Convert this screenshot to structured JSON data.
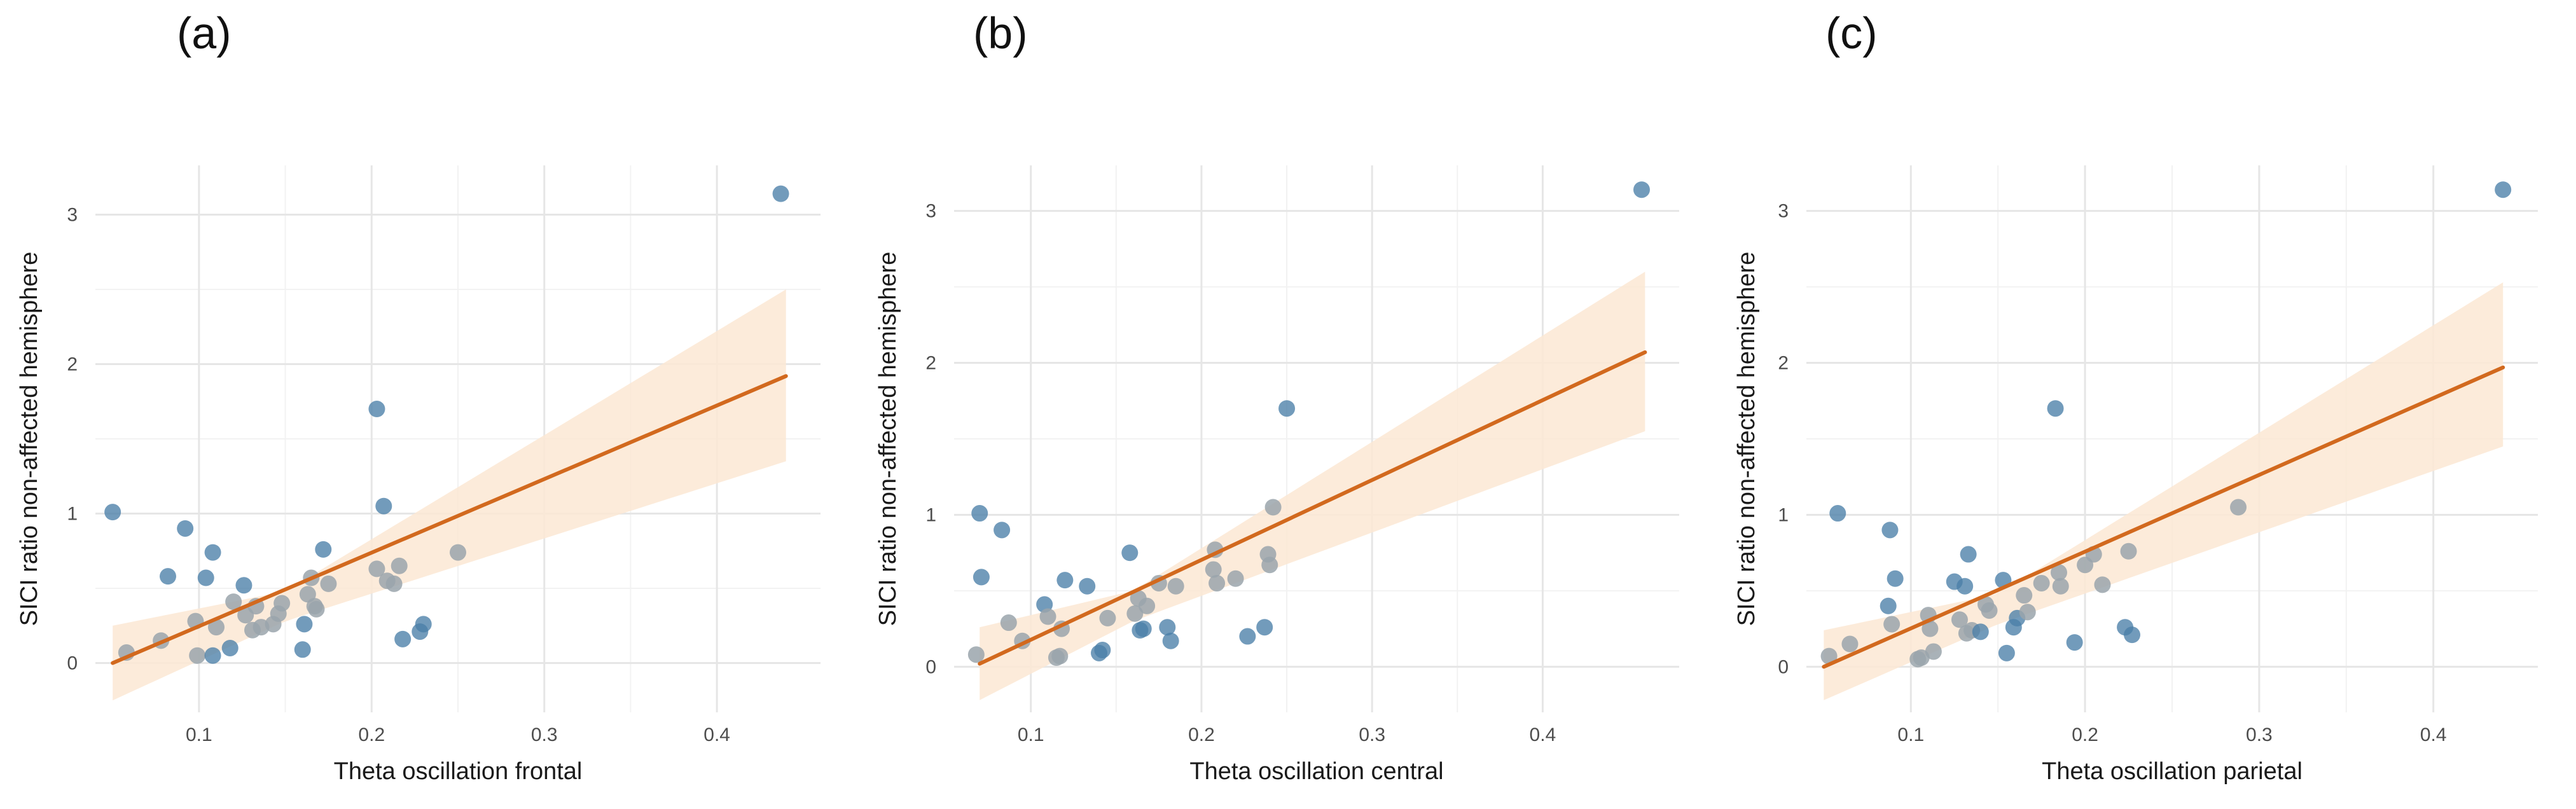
{
  "colors": {
    "point": "#4a7fa8",
    "point_gray": "#9aa4ab",
    "line": "#d2691e",
    "band": "#fbe7d3",
    "grid": "#e6e6e6"
  },
  "chart_data": [
    {
      "type": "scatter",
      "panel_label": "(a)",
      "xlabel": "Theta oscillation frontal",
      "ylabel": "SICI ratio non-affected hemisphere",
      "xlim": [
        0.04,
        0.46
      ],
      "ylim": [
        -0.33,
        3.33
      ],
      "xticks": [
        0.1,
        0.2,
        0.3,
        0.4
      ],
      "xtick_labels": [
        "0.1",
        "0.2",
        "0.3",
        "0.4"
      ],
      "yticks": [
        0,
        1,
        2,
        3
      ],
      "ytick_labels": [
        "0",
        "1",
        "2",
        "3"
      ],
      "fit": {
        "x": [
          0.05,
          0.44
        ],
        "y": [
          0.0,
          1.92
        ]
      },
      "ci_band": {
        "x": [
          0.05,
          0.15,
          0.44
        ],
        "lower": [
          -0.25,
          0.28,
          1.35
        ],
        "upper": [
          0.25,
          0.48,
          2.5
        ]
      },
      "points": [
        {
          "x": 0.05,
          "y": 1.01
        },
        {
          "x": 0.058,
          "y": 0.07
        },
        {
          "x": 0.078,
          "y": 0.15
        },
        {
          "x": 0.082,
          "y": 0.58
        },
        {
          "x": 0.092,
          "y": 0.9
        },
        {
          "x": 0.098,
          "y": 0.28
        },
        {
          "x": 0.099,
          "y": 0.05
        },
        {
          "x": 0.104,
          "y": 0.57
        },
        {
          "x": 0.108,
          "y": 0.74
        },
        {
          "x": 0.108,
          "y": 0.05
        },
        {
          "x": 0.11,
          "y": 0.24
        },
        {
          "x": 0.118,
          "y": 0.1
        },
        {
          "x": 0.12,
          "y": 0.41
        },
        {
          "x": 0.126,
          "y": 0.52
        },
        {
          "x": 0.127,
          "y": 0.32
        },
        {
          "x": 0.131,
          "y": 0.22
        },
        {
          "x": 0.133,
          "y": 0.38
        },
        {
          "x": 0.136,
          "y": 0.24
        },
        {
          "x": 0.143,
          "y": 0.26
        },
        {
          "x": 0.146,
          "y": 0.33
        },
        {
          "x": 0.148,
          "y": 0.4
        },
        {
          "x": 0.16,
          "y": 0.09
        },
        {
          "x": 0.161,
          "y": 0.26
        },
        {
          "x": 0.163,
          "y": 0.46
        },
        {
          "x": 0.165,
          "y": 0.57
        },
        {
          "x": 0.167,
          "y": 0.38
        },
        {
          "x": 0.168,
          "y": 0.36
        },
        {
          "x": 0.172,
          "y": 0.76
        },
        {
          "x": 0.175,
          "y": 0.53
        },
        {
          "x": 0.203,
          "y": 1.7
        },
        {
          "x": 0.203,
          "y": 0.63
        },
        {
          "x": 0.207,
          "y": 1.05
        },
        {
          "x": 0.209,
          "y": 0.55
        },
        {
          "x": 0.213,
          "y": 0.53
        },
        {
          "x": 0.216,
          "y": 0.65
        },
        {
          "x": 0.218,
          "y": 0.16
        },
        {
          "x": 0.228,
          "y": 0.21
        },
        {
          "x": 0.23,
          "y": 0.26
        },
        {
          "x": 0.25,
          "y": 0.74
        },
        {
          "x": 0.437,
          "y": 3.14
        }
      ]
    },
    {
      "type": "scatter",
      "panel_label": "(b)",
      "xlabel": "Theta oscillation central",
      "ylabel": "SICI ratio non-affected hemisphere",
      "xlim": [
        0.055,
        0.48
      ],
      "ylim": [
        -0.3,
        3.3
      ],
      "xticks": [
        0.1,
        0.2,
        0.3,
        0.4
      ],
      "xtick_labels": [
        "0.1",
        "0.2",
        "0.3",
        "0.4"
      ],
      "yticks": [
        0,
        1,
        2,
        3
      ],
      "ytick_labels": [
        "0",
        "1",
        "2",
        "3"
      ],
      "fit": {
        "x": [
          0.07,
          0.46
        ],
        "y": [
          0.02,
          2.07
        ]
      },
      "ci_band": {
        "x": [
          0.07,
          0.16,
          0.46
        ],
        "lower": [
          -0.22,
          0.3,
          1.55
        ],
        "upper": [
          0.26,
          0.5,
          2.6
        ]
      },
      "points": [
        {
          "x": 0.068,
          "y": 0.08
        },
        {
          "x": 0.07,
          "y": 1.01
        },
        {
          "x": 0.071,
          "y": 0.59
        },
        {
          "x": 0.083,
          "y": 0.9
        },
        {
          "x": 0.087,
          "y": 0.29
        },
        {
          "x": 0.095,
          "y": 0.17
        },
        {
          "x": 0.108,
          "y": 0.41
        },
        {
          "x": 0.11,
          "y": 0.33
        },
        {
          "x": 0.115,
          "y": 0.06
        },
        {
          "x": 0.117,
          "y": 0.07
        },
        {
          "x": 0.118,
          "y": 0.25
        },
        {
          "x": 0.12,
          "y": 0.57
        },
        {
          "x": 0.133,
          "y": 0.53
        },
        {
          "x": 0.14,
          "y": 0.09
        },
        {
          "x": 0.142,
          "y": 0.11
        },
        {
          "x": 0.145,
          "y": 0.32
        },
        {
          "x": 0.158,
          "y": 0.75
        },
        {
          "x": 0.161,
          "y": 0.35
        },
        {
          "x": 0.163,
          "y": 0.45
        },
        {
          "x": 0.164,
          "y": 0.24
        },
        {
          "x": 0.166,
          "y": 0.25
        },
        {
          "x": 0.168,
          "y": 0.4
        },
        {
          "x": 0.175,
          "y": 0.55
        },
        {
          "x": 0.18,
          "y": 0.26
        },
        {
          "x": 0.182,
          "y": 0.17
        },
        {
          "x": 0.185,
          "y": 0.53
        },
        {
          "x": 0.207,
          "y": 0.64
        },
        {
          "x": 0.208,
          "y": 0.77
        },
        {
          "x": 0.209,
          "y": 0.55
        },
        {
          "x": 0.22,
          "y": 0.58
        },
        {
          "x": 0.227,
          "y": 0.2
        },
        {
          "x": 0.237,
          "y": 0.26
        },
        {
          "x": 0.239,
          "y": 0.74
        },
        {
          "x": 0.24,
          "y": 0.67
        },
        {
          "x": 0.242,
          "y": 1.05
        },
        {
          "x": 0.25,
          "y": 1.7
        },
        {
          "x": 0.458,
          "y": 3.14
        }
      ]
    },
    {
      "type": "scatter",
      "panel_label": "(c)",
      "xlabel": "Theta oscillation parietal",
      "ylabel": "SICI ratio non-affected hemisphere",
      "xlim": [
        0.04,
        0.46
      ],
      "ylim": [
        -0.3,
        3.3
      ],
      "xticks": [
        0.1,
        0.2,
        0.3,
        0.4
      ],
      "xtick_labels": [
        "0.1",
        "0.2",
        "0.3",
        "0.4"
      ],
      "yticks": [
        0,
        1,
        2,
        3
      ],
      "ytick_labels": [
        "0",
        "1",
        "2",
        "3"
      ],
      "fit": {
        "x": [
          0.05,
          0.44
        ],
        "y": [
          0.0,
          1.97
        ]
      },
      "ci_band": {
        "x": [
          0.05,
          0.15,
          0.44
        ],
        "lower": [
          -0.22,
          0.28,
          1.45
        ],
        "upper": [
          0.24,
          0.48,
          2.53
        ]
      },
      "points": [
        {
          "x": 0.053,
          "y": 0.07
        },
        {
          "x": 0.058,
          "y": 1.01
        },
        {
          "x": 0.065,
          "y": 0.15
        },
        {
          "x": 0.087,
          "y": 0.4
        },
        {
          "x": 0.088,
          "y": 0.9
        },
        {
          "x": 0.089,
          "y": 0.28
        },
        {
          "x": 0.091,
          "y": 0.58
        },
        {
          "x": 0.104,
          "y": 0.05
        },
        {
          "x": 0.106,
          "y": 0.06
        },
        {
          "x": 0.11,
          "y": 0.34
        },
        {
          "x": 0.111,
          "y": 0.25
        },
        {
          "x": 0.113,
          "y": 0.1
        },
        {
          "x": 0.125,
          "y": 0.56
        },
        {
          "x": 0.128,
          "y": 0.31
        },
        {
          "x": 0.131,
          "y": 0.53
        },
        {
          "x": 0.132,
          "y": 0.22
        },
        {
          "x": 0.133,
          "y": 0.74
        },
        {
          "x": 0.135,
          "y": 0.24
        },
        {
          "x": 0.14,
          "y": 0.23
        },
        {
          "x": 0.143,
          "y": 0.41
        },
        {
          "x": 0.145,
          "y": 0.37
        },
        {
          "x": 0.153,
          "y": 0.57
        },
        {
          "x": 0.155,
          "y": 0.09
        },
        {
          "x": 0.159,
          "y": 0.26
        },
        {
          "x": 0.161,
          "y": 0.32
        },
        {
          "x": 0.165,
          "y": 0.47
        },
        {
          "x": 0.167,
          "y": 0.36
        },
        {
          "x": 0.175,
          "y": 0.55
        },
        {
          "x": 0.183,
          "y": 1.7
        },
        {
          "x": 0.185,
          "y": 0.62
        },
        {
          "x": 0.186,
          "y": 0.53
        },
        {
          "x": 0.194,
          "y": 0.16
        },
        {
          "x": 0.2,
          "y": 0.67
        },
        {
          "x": 0.205,
          "y": 0.74
        },
        {
          "x": 0.21,
          "y": 0.54
        },
        {
          "x": 0.223,
          "y": 0.26
        },
        {
          "x": 0.225,
          "y": 0.76
        },
        {
          "x": 0.227,
          "y": 0.21
        },
        {
          "x": 0.288,
          "y": 1.05
        },
        {
          "x": 0.44,
          "y": 3.14
        }
      ]
    }
  ]
}
